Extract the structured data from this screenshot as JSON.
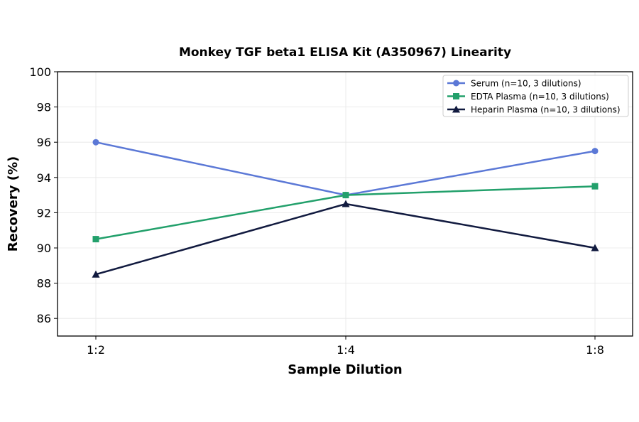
{
  "chart_data": {
    "type": "line",
    "title": "Monkey TGF beta1 ELISA Kit (A350967) Linearity",
    "xlabel": "Sample Dilution",
    "ylabel": "Recovery (%)",
    "categories": [
      "1:2",
      "1:4",
      "1:8"
    ],
    "ylim": [
      85,
      100
    ],
    "yticks": [
      86,
      88,
      90,
      92,
      94,
      96,
      98,
      100
    ],
    "grid": true,
    "legend_position": "top-right",
    "series": [
      {
        "name": "Serum (n=10, 3 dilutions)",
        "values": [
          96,
          93,
          95.5
        ],
        "color": "#5b78d6",
        "marker": "circle"
      },
      {
        "name": "EDTA Plasma (n=10, 3 dilutions)",
        "values": [
          90.5,
          93,
          93.5
        ],
        "color": "#22a06b",
        "marker": "square"
      },
      {
        "name": "Heparin Plasma (n=10, 3 dilutions)",
        "values": [
          88.5,
          92.5,
          90
        ],
        "color": "#111a3f",
        "marker": "triangle"
      }
    ]
  }
}
